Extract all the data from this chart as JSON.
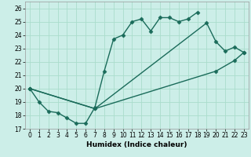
{
  "xlabel": "Humidex (Indice chaleur)",
  "bg_color": "#cceee8",
  "grid_color": "#aaddcc",
  "line_color": "#1a6b5a",
  "xlim": [
    -0.5,
    23.5
  ],
  "ylim": [
    17,
    26.5
  ],
  "yticks": [
    17,
    18,
    19,
    20,
    21,
    22,
    23,
    24,
    25,
    26
  ],
  "xticks": [
    0,
    1,
    2,
    3,
    4,
    5,
    6,
    7,
    8,
    9,
    10,
    11,
    12,
    13,
    14,
    15,
    16,
    17,
    18,
    19,
    20,
    21,
    22,
    23
  ],
  "line1_x": [
    0,
    1,
    2,
    3,
    4,
    5,
    6,
    7,
    8,
    9,
    10,
    11,
    12,
    13,
    14,
    15,
    16,
    17,
    18
  ],
  "line1_y": [
    20.0,
    19.0,
    18.3,
    18.2,
    17.8,
    17.4,
    17.4,
    18.6,
    21.3,
    23.7,
    24.0,
    25.0,
    25.2,
    24.3,
    25.3,
    25.3,
    25.0,
    25.2,
    25.7
  ],
  "line2_x": [
    0,
    7,
    19,
    20,
    21,
    22,
    23
  ],
  "line2_y": [
    20.0,
    18.5,
    24.9,
    23.5,
    22.8,
    23.1,
    22.7
  ],
  "line3_x": [
    0,
    7,
    20,
    22,
    23
  ],
  "line3_y": [
    20.0,
    18.5,
    21.3,
    22.1,
    22.7
  ],
  "marker_size": 2.5,
  "linewidth": 1.0
}
